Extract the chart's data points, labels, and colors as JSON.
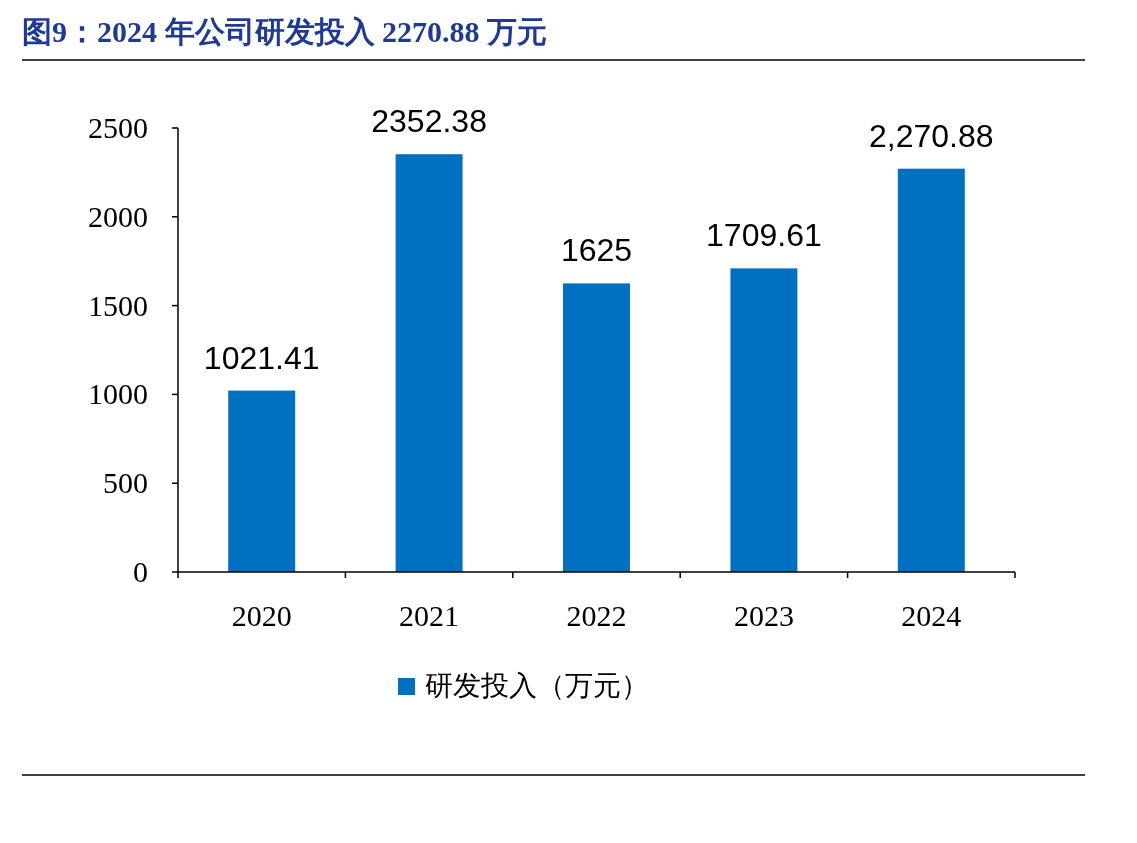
{
  "chart_data": {
    "type": "bar",
    "title": "图9：2024 年公司研发投入 2270.88 万元",
    "categories": [
      "2020",
      "2021",
      "2022",
      "2023",
      "2024"
    ],
    "series": [
      {
        "name": "研发投入（万元）",
        "color": "#0070c0",
        "values": [
          1021.41,
          2352.38,
          1625,
          1709.61,
          2270.88
        ],
        "value_labels": [
          "1021.41",
          "2352.38",
          "1625",
          "1709.61",
          "2,270.88"
        ]
      }
    ],
    "ylim": [
      0,
      2500
    ],
    "yticks": [
      0,
      500,
      1000,
      1500,
      2000,
      2500
    ],
    "grid": false,
    "legend": "bottom"
  }
}
